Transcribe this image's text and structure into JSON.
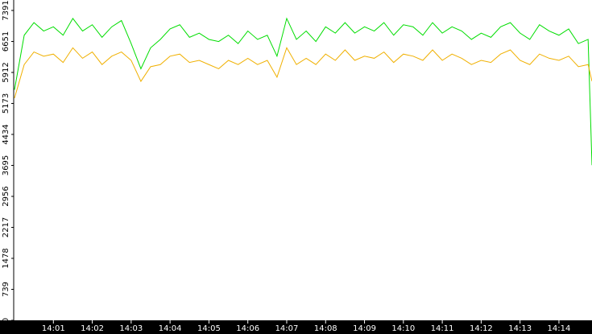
{
  "chart_data": {
    "type": "line",
    "x": [
      0,
      0.25,
      0.5,
      0.75,
      1,
      1.25,
      1.5,
      1.75,
      2,
      2.25,
      2.5,
      2.75,
      3,
      3.25,
      3.5,
      3.75,
      4,
      4.25,
      4.5,
      4.75,
      5,
      5.25,
      5.5,
      5.75,
      6,
      6.25,
      6.5,
      6.75,
      7,
      7.25,
      7.5,
      7.75,
      8,
      8.25,
      8.5,
      8.75,
      9,
      9.25,
      9.5,
      9.75,
      10,
      10.25,
      10.5,
      10.75,
      11,
      11.25,
      11.5,
      11.75,
      12,
      12.25,
      12.5,
      12.75,
      13,
      13.25,
      13.5,
      13.75,
      14,
      14.25,
      14.5,
      14.75,
      14.85
    ],
    "series": [
      {
        "color": "#00dd00",
        "values": [
          5500,
          6800,
          7100,
          6900,
          7000,
          6800,
          7200,
          6900,
          7050,
          6750,
          7000,
          7150,
          6600,
          6000,
          6500,
          6700,
          6950,
          7050,
          6750,
          6850,
          6700,
          6650,
          6800,
          6600,
          6900,
          6700,
          6800,
          6300,
          7200,
          6700,
          6900,
          6650,
          7000,
          6850,
          7100,
          6850,
          7000,
          6900,
          7100,
          6800,
          7050,
          7000,
          6800,
          7100,
          6850,
          7000,
          6900,
          6700,
          6850,
          6750,
          7000,
          7100,
          6850,
          6700,
          7050,
          6900,
          6800,
          6950,
          6600,
          6700,
          3700
        ]
      },
      {
        "color": "#f0b000",
        "values": [
          5300,
          6100,
          6400,
          6300,
          6350,
          6150,
          6500,
          6250,
          6400,
          6100,
          6300,
          6400,
          6200,
          5700,
          6050,
          6100,
          6300,
          6350,
          6150,
          6200,
          6100,
          6000,
          6200,
          6100,
          6250,
          6100,
          6200,
          5800,
          6500,
          6100,
          6250,
          6100,
          6350,
          6200,
          6450,
          6200,
          6300,
          6250,
          6400,
          6150,
          6350,
          6300,
          6200,
          6450,
          6200,
          6350,
          6250,
          6100,
          6200,
          6150,
          6350,
          6450,
          6200,
          6100,
          6350,
          6250,
          6200,
          6300,
          6050,
          6100,
          5700
        ]
      }
    ],
    "xlim": [
      0,
      14.85
    ],
    "xticks": [
      {
        "value": 1,
        "label": "14:01"
      },
      {
        "value": 2,
        "label": "14:02"
      },
      {
        "value": 3,
        "label": "14:03"
      },
      {
        "value": 4,
        "label": "14:04"
      },
      {
        "value": 5,
        "label": "14:05"
      },
      {
        "value": 6,
        "label": "14:06"
      },
      {
        "value": 7,
        "label": "14:07"
      },
      {
        "value": 8,
        "label": "14:08"
      },
      {
        "value": 9,
        "label": "14:09"
      },
      {
        "value": 10,
        "label": "14:10"
      },
      {
        "value": 11,
        "label": "14:11"
      },
      {
        "value": 12,
        "label": "14:12"
      },
      {
        "value": 13,
        "label": "14:13"
      },
      {
        "value": 14,
        "label": "14:14"
      }
    ],
    "ylim": [
      0,
      7640
    ],
    "yticks": [
      0,
      739,
      1478,
      2217,
      2956,
      3695,
      4434,
      5173,
      5912,
      6651,
      7391
    ]
  }
}
